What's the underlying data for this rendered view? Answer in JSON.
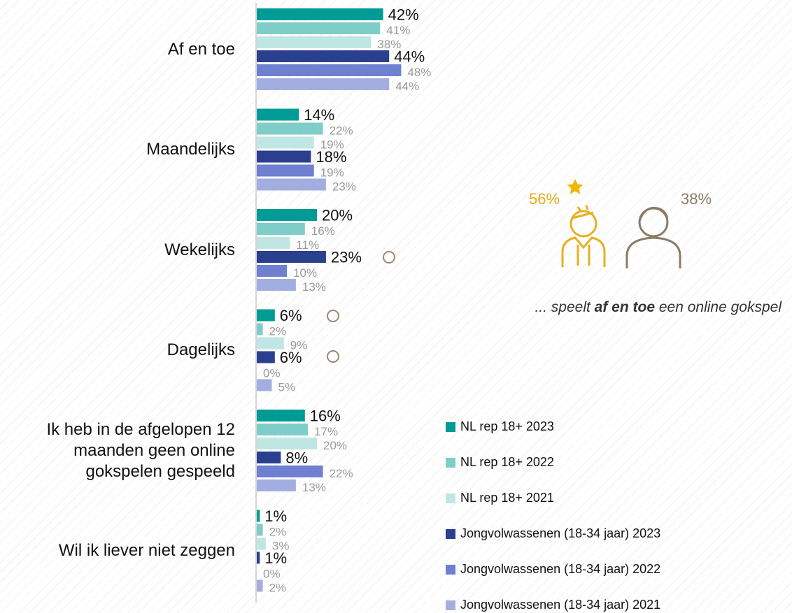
{
  "chart_data": {
    "type": "hbar",
    "categories": [
      "Af en toe",
      "Maandelijks",
      "Wekelijks",
      "Dagelijks",
      "Ik heb in de afgelopen 12 maanden geen online gokspelen gespeeld",
      "Wil ik liever niet zeggen"
    ],
    "series": [
      {
        "name": "NL rep 18+ 2023",
        "color": "#009b94",
        "values": [
          42,
          14,
          20,
          6,
          16,
          1
        ],
        "value_labels": [
          "42%",
          "14%",
          "20%",
          "6%",
          "16%",
          "1%"
        ]
      },
      {
        "name": "NL rep 18+ 2022",
        "color": "#7fcdc9",
        "values": [
          41,
          22,
          16,
          2,
          17,
          2
        ],
        "value_labels": [
          "41%",
          "22%",
          "16%",
          "2%",
          "17%",
          "2%"
        ]
      },
      {
        "name": "NL rep 18+ 2021",
        "color": "#bfe6e2",
        "values": [
          38,
          19,
          11,
          9,
          20,
          3
        ],
        "value_labels": [
          "38%",
          "19%",
          "11%",
          "9%",
          "20%",
          "3%"
        ]
      },
      {
        "name": "Jongvolwassenen (18-34 jaar) 2023",
        "color": "#2b3f8f",
        "values": [
          44,
          18,
          23,
          6,
          8,
          1
        ],
        "value_labels": [
          "44%",
          "18%",
          "23%",
          "6%",
          "8%",
          "1%"
        ]
      },
      {
        "name": "Jongvolwassenen (18-34 jaar) 2022",
        "color": "#6f80d0",
        "values": [
          48,
          19,
          10,
          0,
          22,
          0
        ],
        "value_labels": [
          "48%",
          "19%",
          "10%",
          "0%",
          "22%",
          "0%"
        ]
      },
      {
        "name": "Jongvolwassenen (18-34 jaar) 2021",
        "color": "#a3aee0",
        "values": [
          44,
          23,
          13,
          5,
          13,
          2
        ],
        "value_labels": [
          "44%",
          "23%",
          "13%",
          "5%",
          "13%",
          "2%"
        ]
      }
    ],
    "legend": "bottom-right"
  },
  "infographic": {
    "female_label": "56%",
    "male_label": "38%",
    "caption": [
      "... speelt ",
      "af en toe",
      " een online gokspel"
    ]
  }
}
